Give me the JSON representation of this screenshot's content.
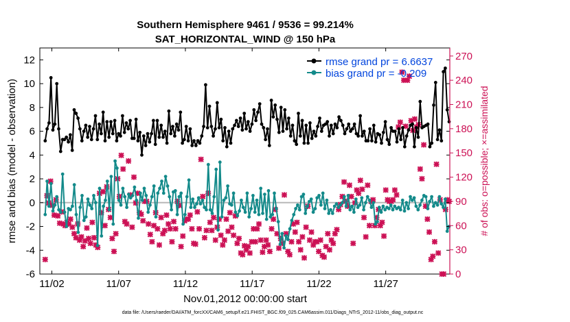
{
  "chart_data": {
    "type": "line",
    "title_line1": "Southern Hemisphere 9461 / 9536 = 99.214%",
    "title_line2": "SAT_HORIZONTAL_WIND @ 150 hPa",
    "xlabel": "Nov.01,2012 00:00:00 start",
    "ylabel": "rmse and bias (model - observation)",
    "y2label": "# of obs: o=possible; ×=assimilated",
    "xlim": [
      0.6,
      31.3
    ],
    "ylim": [
      -6,
      13
    ],
    "y2lim": [
      0,
      280
    ],
    "xticks": [
      1.5,
      6.5,
      11.5,
      16.5,
      21.5,
      26.5
    ],
    "xticklabels": [
      "11/02",
      "11/07",
      "11/12",
      "11/17",
      "11/22",
      "11/27"
    ],
    "yticks": [
      -6,
      -4,
      -2,
      0,
      2,
      4,
      6,
      8,
      10,
      12
    ],
    "y2ticks": [
      0,
      30,
      60,
      90,
      120,
      150,
      180,
      210,
      240,
      270
    ],
    "footnote": "data file: /Users/raeder/DAI/ATM_forcXX/CAM6_setup/f.e21.FHIST_BGC.f09_025.CAM6assim.011/Diags_NTrS_2012-11/obs_diag_output.nc",
    "series": [
      {
        "name": "rmse grand pr = 6.6637",
        "color": "#000000",
        "values": [
          5.2,
          6.2,
          6.7,
          10.5,
          6.1,
          6.6,
          10.0,
          6.2,
          4.3,
          5.3,
          5.3,
          5.5,
          5.1,
          5.7,
          4.4,
          7.8,
          7.5,
          7.1,
          6.2,
          5.2,
          6.0,
          6.5,
          5.5,
          6.4,
          5.3,
          6.2,
          7.3,
          5.3,
          6.6,
          5.8,
          7.6,
          5.2,
          6.8,
          5.5,
          6.8,
          5.8,
          6.9,
          5.2,
          5.8,
          5.6,
          7.3,
          5.9,
          6.7,
          6.2,
          6.9,
          5.4,
          5.4,
          7.0,
          5.2,
          5.9,
          4.0,
          5.6,
          4.8,
          5.8,
          5.1,
          5.8,
          6.9,
          4.9,
          6.9,
          5.5,
          6.5,
          5.5,
          6.0,
          5.0,
          7.7,
          5.8,
          6.4,
          5.6,
          6.6,
          6.1,
          7.6,
          5.0,
          5.3,
          6.4,
          5.2,
          6.2,
          4.8,
          5.2,
          4.8,
          5.2,
          5.0,
          5.6,
          6.4,
          9.9,
          6.3,
          8.1,
          6.4,
          5.6,
          6.2,
          8.4,
          6.3,
          7.0,
          5.2,
          6.3,
          4.7,
          6.0,
          5.0,
          6.2,
          6.5,
          6.9,
          6.4,
          7.1,
          6.1,
          7.5,
          6.2,
          6.8,
          6.0,
          6.6,
          7.8,
          6.9,
          7.6,
          8.3,
          6.6,
          6.3,
          5.3,
          6.2,
          4.8,
          8.6,
          7.2,
          8.2,
          7.0,
          5.9,
          8.0,
          6.0,
          7.8,
          6.2,
          7.1,
          5.6,
          6.5,
          5.2,
          4.9,
          7.5,
          5.6,
          6.9,
          5.0,
          6.5,
          5.0,
          6.7,
          5.4,
          6.0,
          5.6,
          6.4,
          7.1,
          6.0,
          6.5,
          6.6,
          6.8,
          5.6,
          6.5,
          5.8,
          6.6,
          6.3,
          7.2,
          6.9,
          6.5,
          5.8,
          6.2,
          6.6,
          6.0,
          6.2,
          6.6,
          5.8,
          5.6,
          7.3,
          5.6,
          6.0,
          5.2,
          5.2,
          6.2,
          5.2,
          6.5,
          5.1,
          5.8,
          5.7,
          5.0,
          5.9,
          6.8,
          5.3,
          4.9,
          6.3,
          6.0,
          6.0,
          5.1,
          6.2,
          5.3,
          6.3,
          4.7,
          5.6,
          6.1,
          6.5,
          6.6,
          4.7,
          6.3,
          5.5,
          8.5,
          6.3,
          6.4,
          6.5,
          6.6,
          4.7,
          5.0,
          8.2,
          10.1,
          5.3,
          6.1,
          5.2,
          11.0,
          11.3,
          7.8,
          6.8
        ]
      },
      {
        "name": "bias grand pr = -0.209",
        "color": "#138a8a",
        "values": [
          -1.0,
          1.8,
          -0.3,
          1.6,
          -0.7,
          -0.2,
          0.5,
          -0.6,
          -0.8,
          2.4,
          -0.8,
          -2.0,
          -0.5,
          -0.6,
          -0.3,
          1.5,
          -1.0,
          -2.5,
          -0.4,
          0.6,
          -1.5,
          -1.2,
          0.3,
          -0.2,
          -0.5,
          0.6,
          0.0,
          -3.6,
          1.2,
          -2.8,
          -0.3,
          0.2,
          1.8,
          -0.6,
          2.2,
          -1.8,
          3.5,
          2.9,
          0.2,
          -0.2,
          1.2,
          0.5,
          -0.4,
          0.7,
          0.4,
          0.6,
          1.3,
          0.2,
          -1.3,
          0.8,
          0.2,
          1.2,
          0.6,
          -0.8,
          -0.2,
          0.5,
          1.4,
          -1.2,
          0.8,
          1.2,
          1.8,
          0.8,
          2.2,
          1.4,
          0.5,
          -0.6,
          0.9,
          1.0,
          -1.0,
          0.5,
          0.8,
          -1.8,
          -1.0,
          0.5,
          1.9,
          -0.4,
          0.3,
          -0.4,
          -0.1,
          0.4,
          -0.1,
          0.2,
          -0.4,
          -0.6,
          3.2,
          -0.6,
          -0.9,
          0.5,
          2.8,
          -2.3,
          3.4,
          -1.2,
          0.2,
          0.4,
          1.4,
          -0.1,
          -0.2,
          0.8,
          -0.8,
          -1.1,
          -0.7,
          0.2,
          -0.4,
          -0.8,
          0.8,
          -1.2,
          -0.5,
          0.6,
          -0.8,
          0.2,
          -1.0,
          1.2,
          -0.9,
          0.7,
          -1.4,
          1.0,
          -1.2,
          -1.0,
          0.8,
          -0.5,
          -1.6,
          -3.5,
          -2.6,
          -3.8,
          -2.8,
          -3.1,
          -2.2,
          -1.5,
          -1.0,
          -0.5,
          -0.2,
          -0.6,
          0.5,
          0.7,
          -0.9,
          -0.3,
          0.1,
          0.3,
          -0.8,
          -0.5,
          0.4,
          0.6,
          -0.2,
          0.8,
          -0.5,
          0.2,
          -0.9,
          -0.6,
          -0.9,
          -0.3,
          -0.1,
          -0.4,
          -0.2,
          0.0,
          0.5,
          -0.3,
          0.6,
          -0.6,
          -0.3,
          -0.8,
          0.3,
          -0.4,
          -0.2,
          0.4,
          -0.6,
          0.0,
          0.5,
          0.2,
          -0.4,
          0.0,
          -1.8,
          -1.6,
          -0.4,
          -0.8,
          -0.3,
          -0.6,
          -0.4,
          -0.5,
          -0.2,
          -0.6,
          -0.3,
          -0.5,
          -0.4,
          -0.6,
          0.2,
          -0.7,
          0.0,
          -0.5,
          0.5,
          0.2,
          0.4,
          -0.3,
          -0.6,
          -0.2,
          0.2,
          0.6,
          0.5,
          -0.5,
          0.1,
          0.5,
          -0.3,
          0.0,
          -0.2,
          0.5,
          -0.1,
          -0.4,
          0.3,
          -2.4,
          -2.0
        ]
      }
    ],
    "assimilated_counts": [
      18,
      97,
      88,
      115,
      85,
      73,
      92,
      72,
      63,
      77,
      62,
      60,
      64,
      62,
      68,
      58,
      50,
      45,
      62,
      42,
      46,
      34,
      41,
      57,
      44,
      38,
      64,
      45,
      36,
      33,
      100,
      76,
      102,
      60,
      108,
      80,
      70,
      44,
      28,
      50,
      118,
      96,
      147,
      130,
      65,
      62,
      140,
      98,
      58,
      120,
      88,
      100,
      76,
      74,
      66,
      90,
      90,
      62,
      49,
      40,
      60,
      76,
      56,
      36,
      70,
      50,
      54,
      73,
      62,
      56,
      40,
      65,
      56,
      90,
      85,
      34,
      47,
      66,
      68,
      68,
      73,
      56,
      38,
      37,
      77,
      56,
      142,
      96,
      45,
      54,
      100,
      64,
      54,
      70,
      42,
      58,
      68,
      48,
      36,
      42,
      68,
      53,
      76,
      58,
      48,
      72,
      38,
      44,
      26,
      24,
      35,
      30,
      34,
      26,
      40,
      56,
      40,
      56,
      62,
      42,
      27,
      34,
      42,
      36,
      28,
      56,
      68,
      80,
      50,
      32,
      44,
      38,
      98,
      50,
      28,
      24,
      40,
      62,
      52,
      64,
      40,
      30,
      46,
      20,
      58,
      84,
      42,
      52,
      36,
      40,
      40,
      28,
      42,
      23,
      21,
      34,
      50,
      30,
      42,
      38,
      50,
      55,
      80,
      86,
      96,
      114,
      90,
      84,
      110,
      96,
      38,
      88,
      104,
      100,
      116,
      105,
      70,
      46,
      110,
      60,
      90,
      92,
      60,
      70,
      80,
      60,
      64,
      47,
      104,
      92,
      90,
      90,
      92,
      104,
      98,
      182,
      188,
      250,
      240,
      183,
      240,
      245,
      190,
      178,
      192,
      182,
      185,
      130,
      118,
      160,
      84,
      68,
      52,
      18,
      22,
      40,
      136,
      26,
      92,
      0,
      0,
      80,
      92,
      90
    ]
  }
}
